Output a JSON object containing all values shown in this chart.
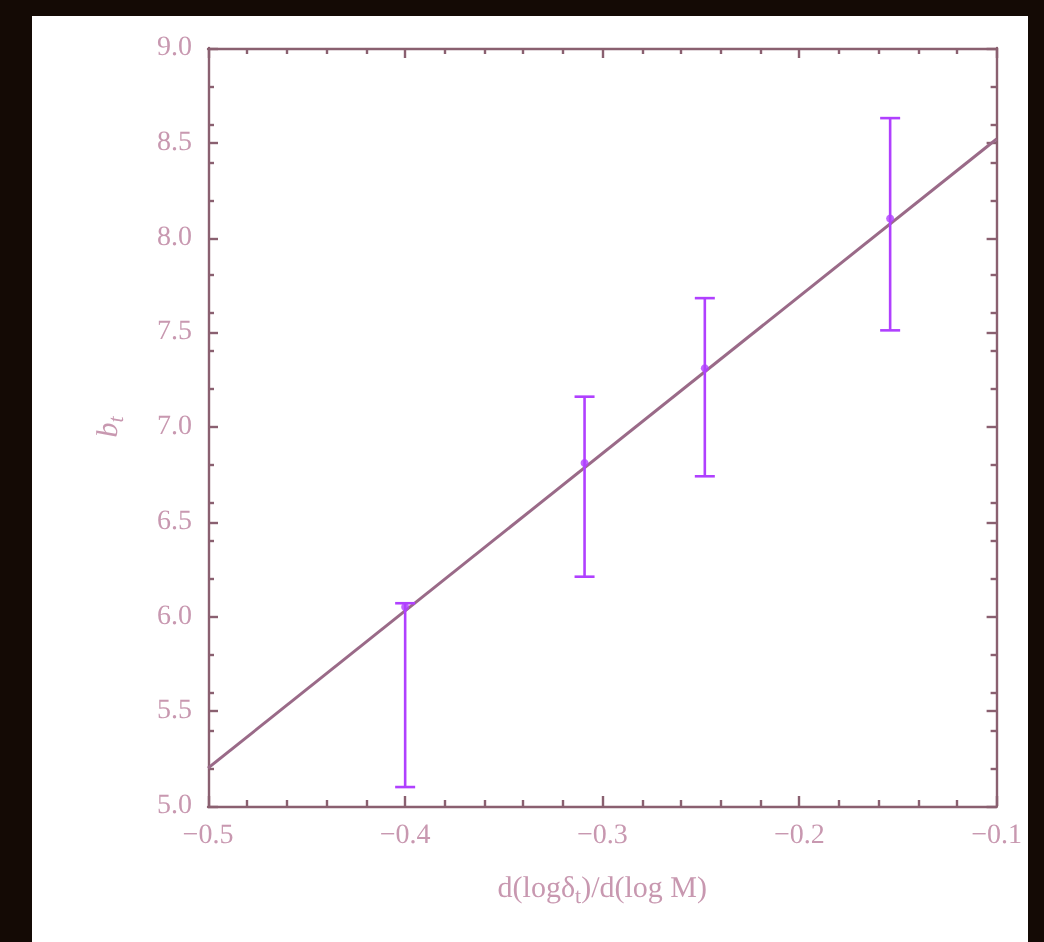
{
  "chart_data": {
    "type": "scatter",
    "xlabel": "d(logδ$_{t}$)/d(log M)",
    "ylabel": "b$_{t}$",
    "xlim": [
      -0.5,
      -0.1
    ],
    "xticks": [
      -0.5,
      -0.4,
      -0.3,
      -0.2,
      -0.1
    ],
    "ylim": [
      5.0,
      9.0
    ],
    "yticks": [
      {
        "value": 5,
        "label": "5.0"
      },
      5.5,
      {
        "value": 6,
        "label": "6.0"
      },
      6.5,
      {
        "value": 7,
        "label": "7.0"
      },
      7.5,
      {
        "value": 8,
        "label": "8.0"
      },
      8.5,
      {
        "value": 9,
        "label": "9.0"
      }
    ],
    "grid": false,
    "series": [
      {
        "marker": "circle",
        "color": "#b040ff",
        "x": [
          -0.4,
          -0.309,
          -0.248,
          -0.154
        ],
        "values": [
          6.05,
          6.81,
          7.31,
          8.1
        ],
        "errors": [
          [
            5.1,
            6.07
          ],
          [
            6.21,
            7.16
          ],
          [
            6.74,
            7.68
          ],
          [
            7.51,
            8.63
          ]
        ]
      },
      {
        "type": "line",
        "color": "#9a6a88",
        "x": [
          -0.5,
          -0.1
        ],
        "values": [
          5.2,
          8.52
        ]
      }
    ]
  }
}
